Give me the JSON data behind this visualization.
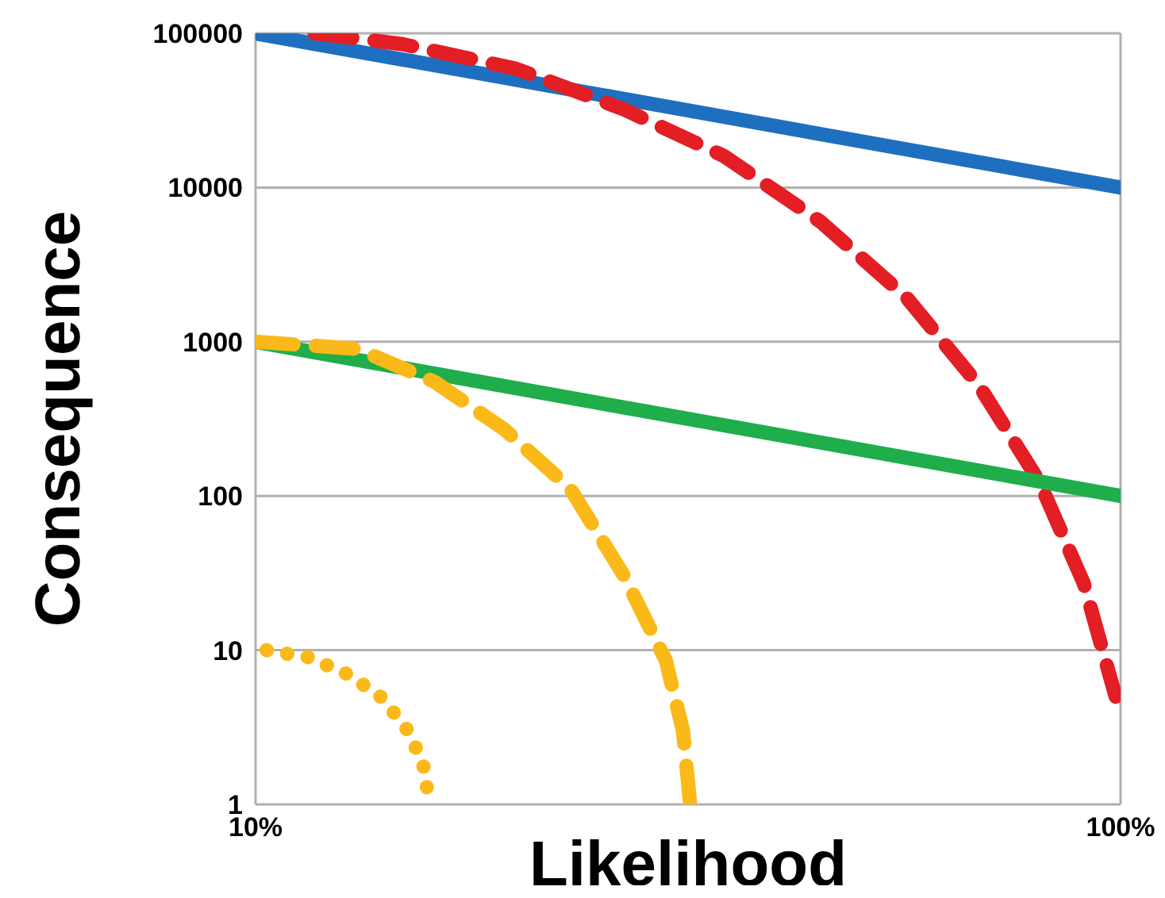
{
  "chart_data": {
    "type": "line",
    "xlabel": "Likelihood",
    "ylabel": "Consequence",
    "log": "xy",
    "grid": true,
    "marker": "none",
    "xlim": [
      10,
      100
    ],
    "xticks": [
      {
        "value": 10,
        "label": "10%"
      },
      {
        "value": 100,
        "label": "100%"
      }
    ],
    "ylim": [
      1,
      100000
    ],
    "yticks": [
      1,
      10,
      100,
      1000,
      10000,
      100000
    ],
    "series": [
      {
        "color": "#1f6fc0",
        "line_style": "solid",
        "x": [
          10,
          100
        ],
        "values": [
          100000,
          10000
        ]
      },
      {
        "color": "#e31e24",
        "line_style": "dashed",
        "x": [
          11.7,
          14.8,
          20,
          26.7,
          34.8,
          45,
          56.5,
          68.6,
          80.6,
          90.7,
          98.7
        ],
        "values": [
          100000,
          85000,
          59000,
          32000,
          16000,
          6000,
          1950,
          520,
          123,
          27,
          5
        ]
      },
      {
        "color": "#1fae4b",
        "line_style": "solid",
        "x": [
          10,
          100
        ],
        "values": [
          1000,
          100
        ]
      },
      {
        "color": "#fbb919",
        "line_style": "dashed",
        "x": [
          10,
          13.1,
          16.1,
          19.4,
          23.1,
          26.7,
          29.8,
          31.2,
          31.8
        ],
        "values": [
          1000,
          900,
          550,
          270,
          112,
          30,
          8.6,
          3,
          1
        ]
      },
      {
        "color": "#fbb919",
        "line_style": "dotted",
        "x": [
          10.3,
          11.5,
          12.7,
          13.9,
          14.9,
          15.6,
          15.9
        ],
        "values": [
          10,
          9,
          7.1,
          5.1,
          3.2,
          1.9,
          1
        ]
      }
    ]
  }
}
